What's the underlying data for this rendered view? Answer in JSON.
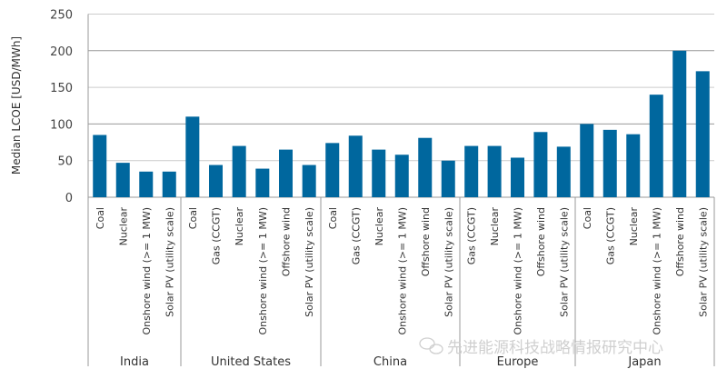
{
  "chart_data": {
    "type": "bar",
    "title": "",
    "xlabel": "",
    "ylabel": "Median LCOE [USD/MWh]",
    "ylim": [
      0,
      250
    ],
    "yticks": [
      0,
      50,
      100,
      150,
      200,
      250
    ],
    "grid": true,
    "bar_color": "#00679e",
    "groups": [
      {
        "name": "India",
        "categories": [
          "Coal",
          "Nuclear",
          "Onshore wind (>= 1 MW)",
          "Solar PV (utility scale)"
        ],
        "values": [
          85,
          47,
          35,
          35
        ]
      },
      {
        "name": "United States",
        "categories": [
          "Coal",
          "Gas (CCGT)",
          "Nuclear",
          "Onshore wind (>= 1 MW)",
          "Offshore wind",
          "Solar PV (utility scale)"
        ],
        "values": [
          110,
          44,
          70,
          39,
          65,
          44
        ]
      },
      {
        "name": "China",
        "categories": [
          "Coal",
          "Gas (CCGT)",
          "Nuclear",
          "Onshore wind (>= 1 MW)",
          "Offshore wind",
          "Solar PV (utility scale)"
        ],
        "values": [
          74,
          84,
          65,
          58,
          81,
          50
        ]
      },
      {
        "name": "Europe",
        "categories": [
          "Gas (CCGT)",
          "Nuclear",
          "Onshore wind (>= 1 MW)",
          "Offshore wind",
          "Solar PV (utility scale)"
        ],
        "values": [
          70,
          70,
          54,
          89,
          69
        ]
      },
      {
        "name": "Japan",
        "categories": [
          "Coal",
          "Gas (CCGT)",
          "Nuclear",
          "Onshore wind (>= 1 MW)",
          "Offshore wind",
          "Solar PV (utility scale)"
        ],
        "values": [
          100,
          92,
          86,
          140,
          200,
          172
        ]
      }
    ]
  },
  "watermark": "先进能源科技战略情报研究中心"
}
